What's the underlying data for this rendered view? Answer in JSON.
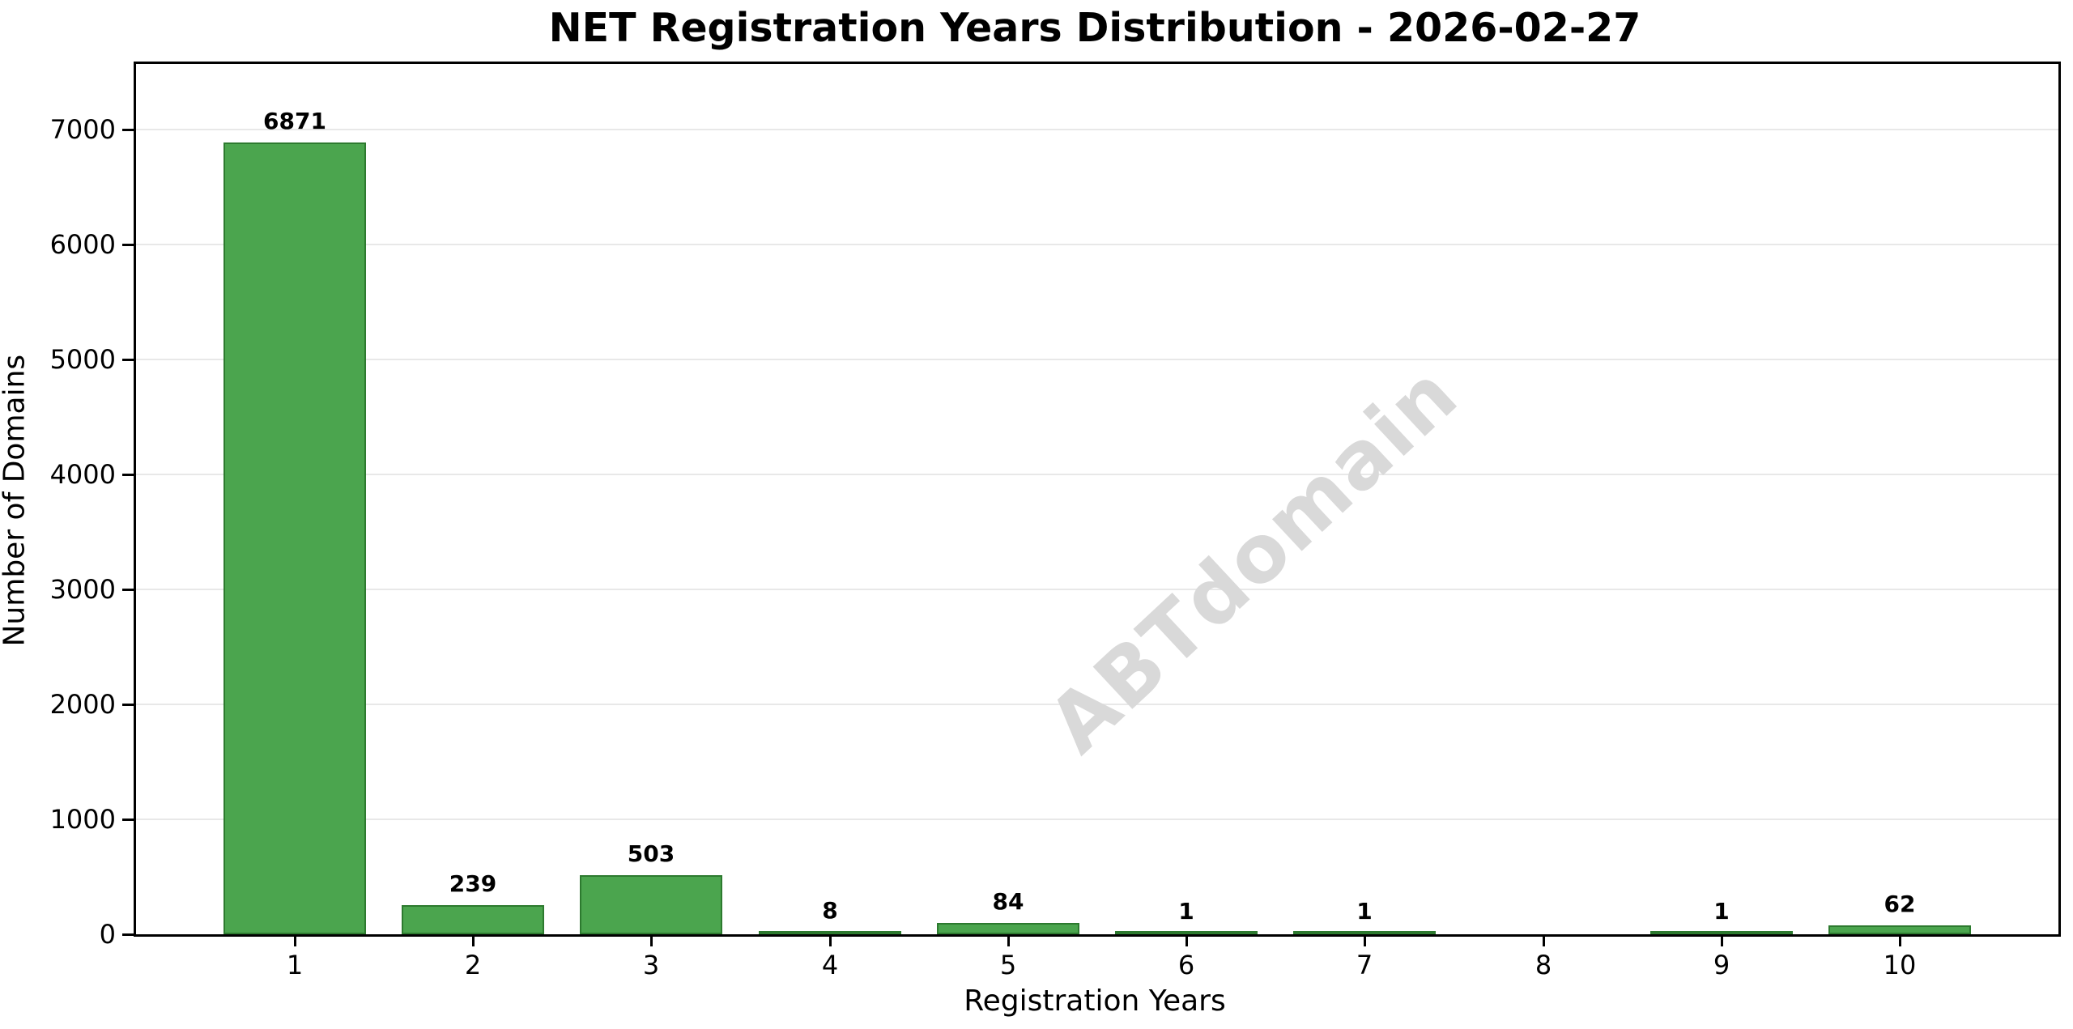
{
  "title": "NET Registration Years Distribution - 2026-02-27",
  "watermark": "ABTdomain",
  "colors": {
    "bar_fill": "#4ba54e",
    "bar_edge": "#2d7a2f",
    "grid": "#e8e8e8",
    "axis": "#000000",
    "watermark": "#d9d9d9",
    "background": "#ffffff"
  },
  "chart_data": {
    "type": "bar",
    "title": "NET Registration Years Distribution - 2026-02-27",
    "xlabel": "Registration Years",
    "ylabel": "Number of Domains",
    "categories": [
      "1",
      "2",
      "3",
      "4",
      "5",
      "6",
      "7",
      "8",
      "9",
      "10"
    ],
    "values": [
      6871,
      239,
      503,
      8,
      84,
      1,
      1,
      0,
      1,
      62
    ],
    "bar_labels": [
      "6871",
      "239",
      "503",
      "8",
      "84",
      "1",
      "1",
      "",
      "1",
      "62"
    ],
    "yticks": [
      0,
      1000,
      2000,
      3000,
      4000,
      5000,
      6000,
      7000
    ],
    "ylim": [
      0,
      7570
    ],
    "xlim": [
      0.11,
      10.89
    ],
    "bar_width_fraction": 0.8,
    "grid": "horizontal-only",
    "legend": "none"
  }
}
